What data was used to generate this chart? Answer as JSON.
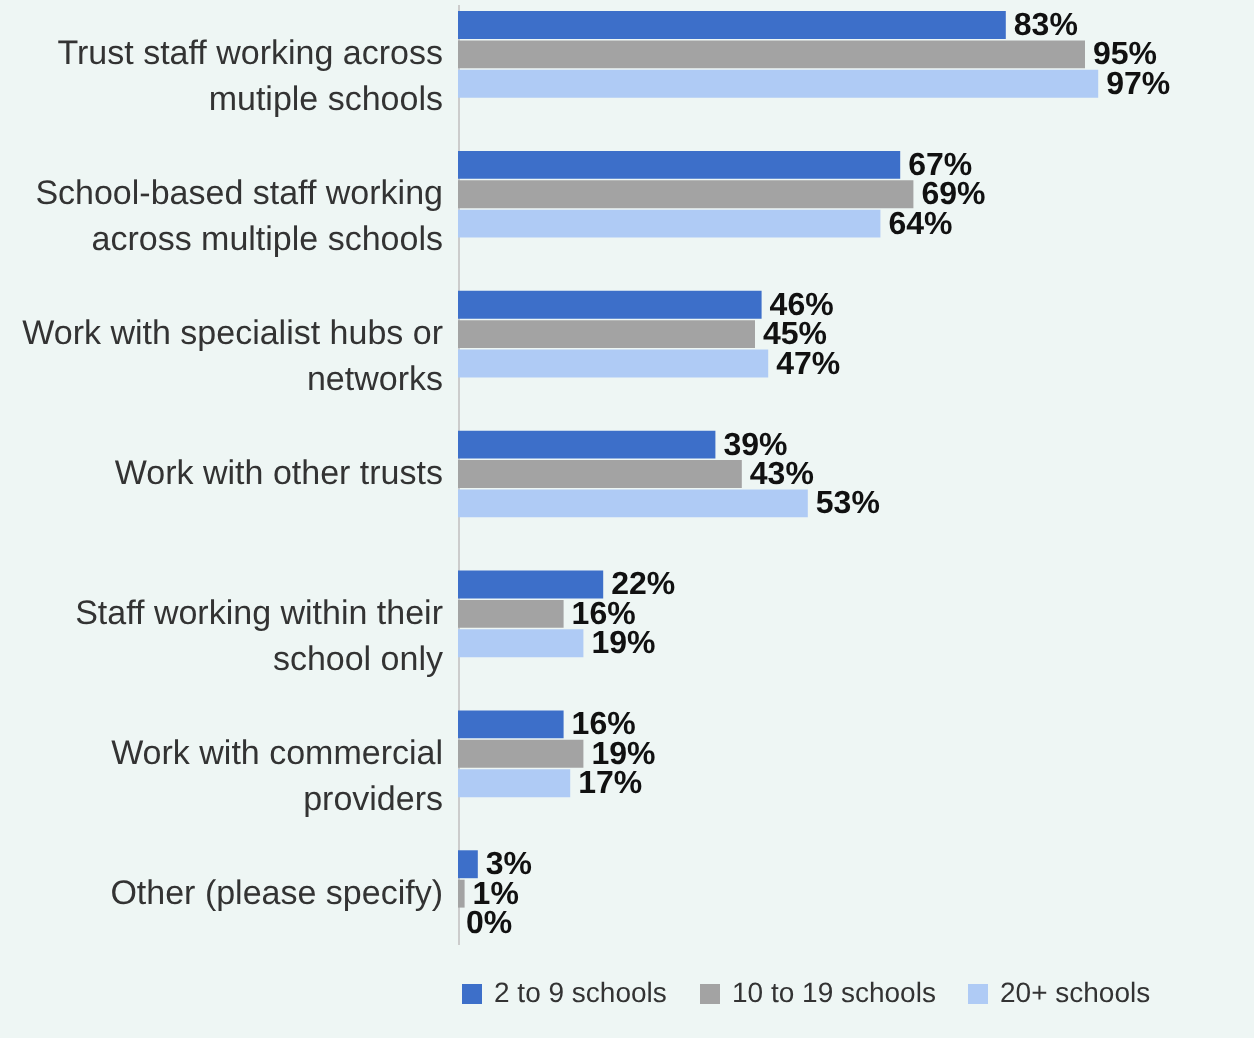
{
  "chart_data": {
    "type": "bar",
    "orientation": "horizontal",
    "categories": [
      "Trust staff working across mutiple schools",
      "School-based staff working across multiple schools",
      "Work with specialist hubs or networks",
      "Work with other trusts",
      "Staff working within their school only",
      "Work with commercial providers",
      "Other (please specify)"
    ],
    "series": [
      {
        "name": "2 to 9 schools",
        "color": "#3d6fc9",
        "values": [
          83,
          67,
          46,
          39,
          22,
          16,
          3
        ],
        "value_labels": [
          "83%",
          "67%",
          "46%",
          "39%",
          "22%",
          "16%",
          "3%"
        ]
      },
      {
        "name": "10 to 19 schools",
        "color": "#a3a3a3",
        "values": [
          95,
          69,
          45,
          43,
          16,
          19,
          1
        ],
        "value_labels": [
          "95%",
          "69%",
          "45%",
          "43%",
          "16%",
          "19%",
          "1%"
        ]
      },
      {
        "name": "20+ schools",
        "color": "#afcbf5",
        "values": [
          97,
          64,
          47,
          53,
          19,
          17,
          0
        ],
        "value_labels": [
          "97%",
          "64%",
          "47%",
          "53%",
          "19%",
          "17%",
          "0%"
        ]
      }
    ],
    "legend": "bottom",
    "grid": false
  }
}
